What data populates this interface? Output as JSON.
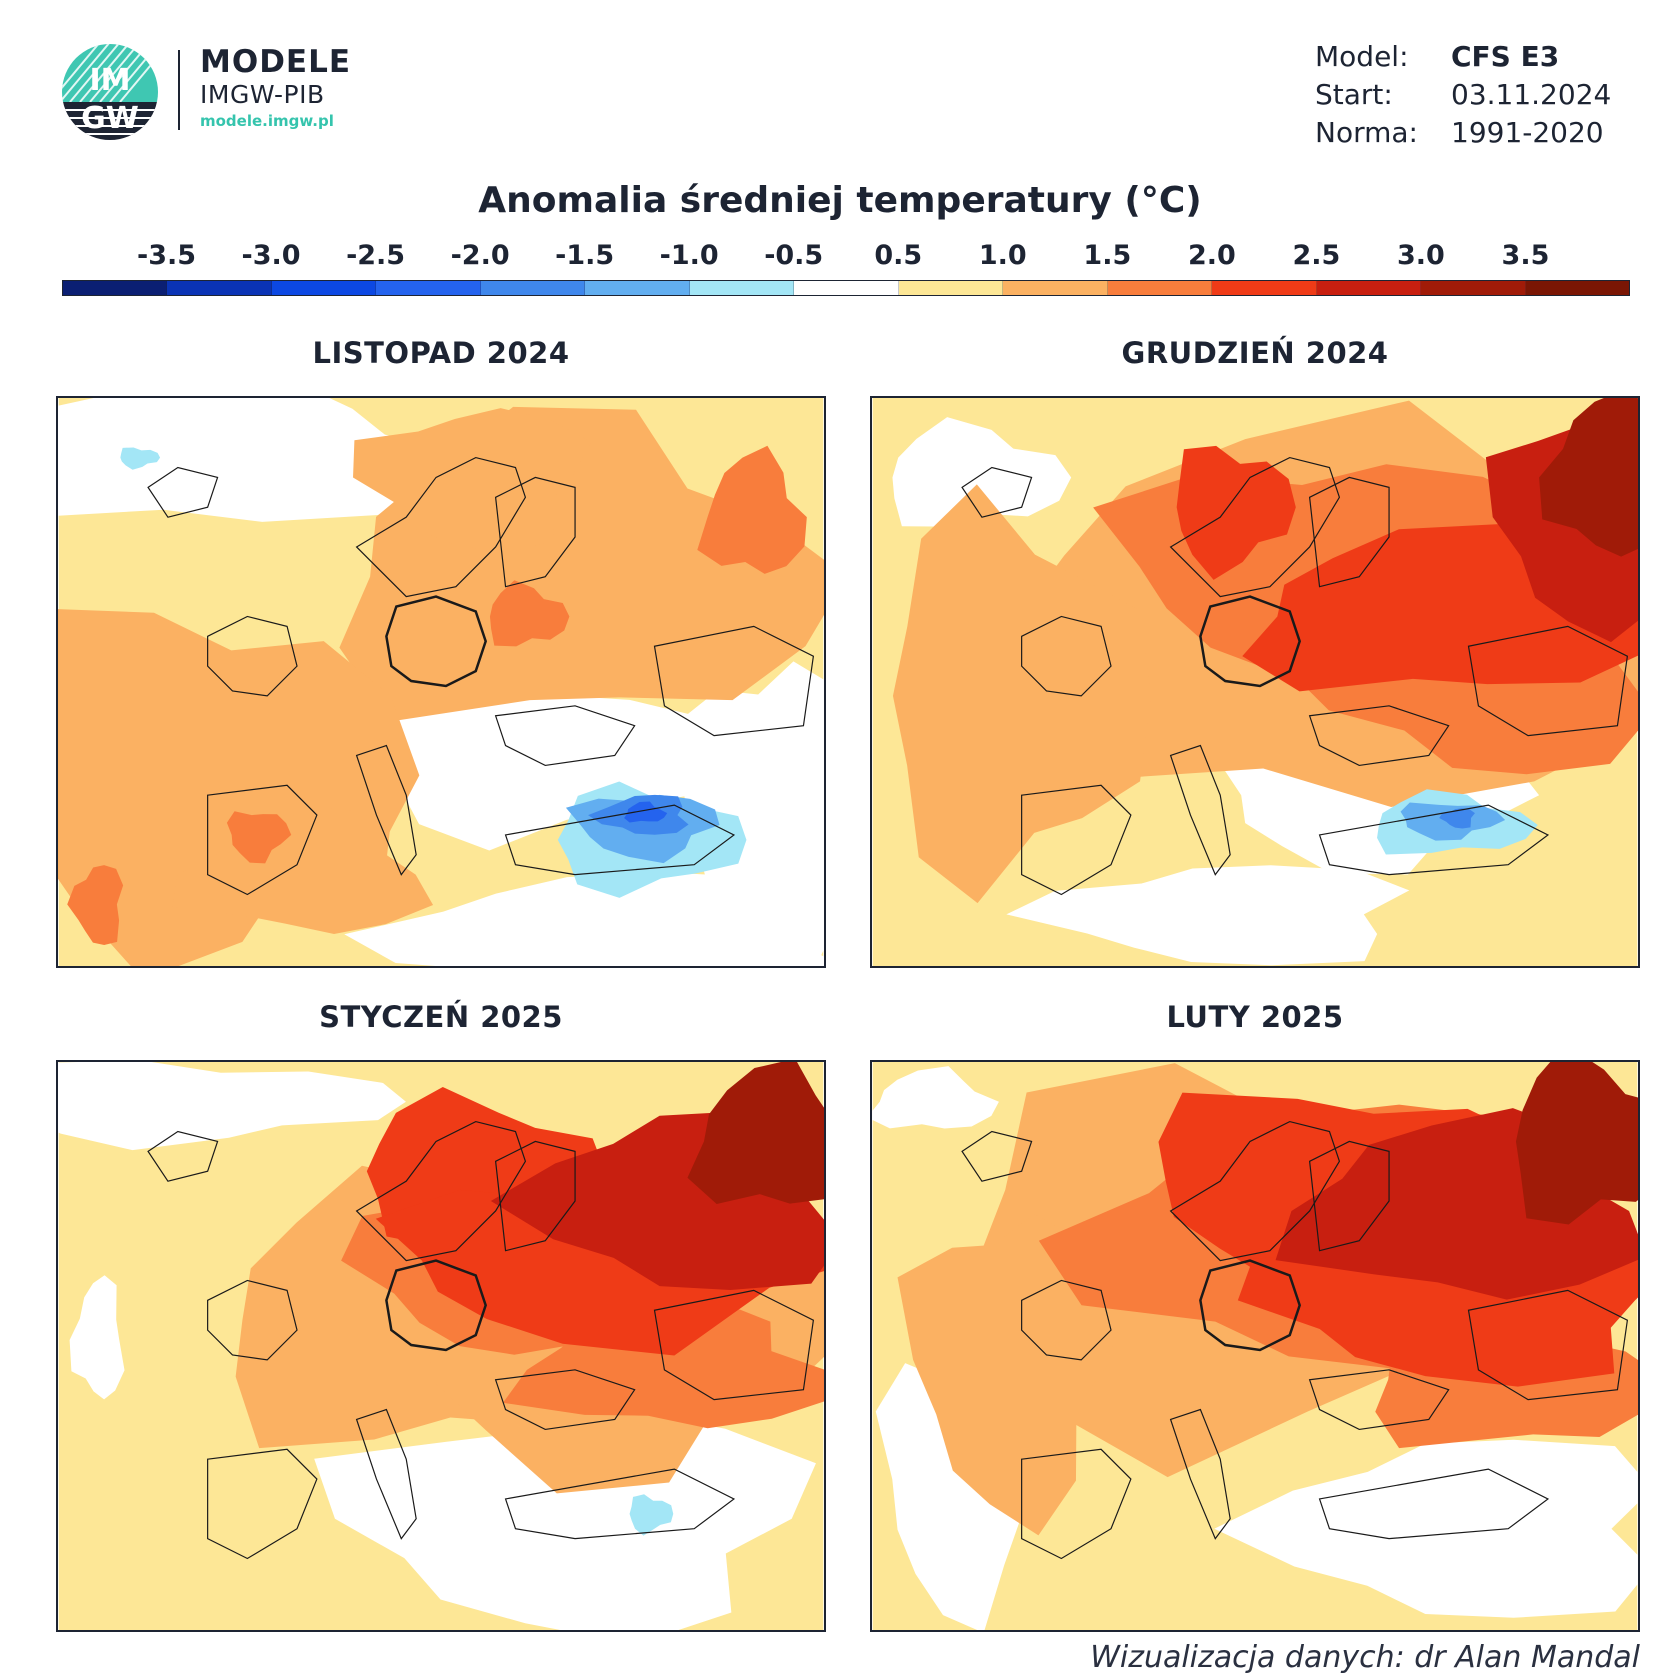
{
  "header": {
    "logo_text_top": "IM",
    "logo_text_bottom": "GW",
    "brand_title": "MODELE",
    "brand_subtitle": "IMGW-PIB",
    "brand_url": "modele.imgw.pl"
  },
  "meta": {
    "model_label": "Model:",
    "model_value": "CFS E3",
    "start_label": "Start:",
    "start_value": "03.11.2024",
    "norm_label": "Norma:",
    "norm_value": "1991-2020"
  },
  "legend": {
    "title": "Anomalia średniej temperatury (°C)",
    "ticks": [
      "-3.5",
      "-3.0",
      "-2.5",
      "-2.0",
      "-1.5",
      "-1.0",
      "-0.5",
      "0.5",
      "1.0",
      "1.5",
      "2.0",
      "2.5",
      "3.0",
      "3.5"
    ],
    "colors": [
      "#0b1f73",
      "#0a33b5",
      "#0c48e3",
      "#2463ee",
      "#3f87ec",
      "#62aef0",
      "#a3e6f6",
      "#ffffff",
      "#fde796",
      "#fbb162",
      "#f87d3c",
      "#ef3b17",
      "#c81f10",
      "#a01b08",
      "#7a1604"
    ]
  },
  "panels": [
    {
      "title": "LISTOPAD 2024",
      "scenario": "nov"
    },
    {
      "title": "GRUDZIEŃ 2024",
      "scenario": "dec"
    },
    {
      "title": "STYCZEŃ 2025",
      "scenario": "jan"
    },
    {
      "title": "LUTY 2025",
      "scenario": "feb"
    }
  ],
  "credit": "Wizualizacja danych: dr Alan Mandal"
}
